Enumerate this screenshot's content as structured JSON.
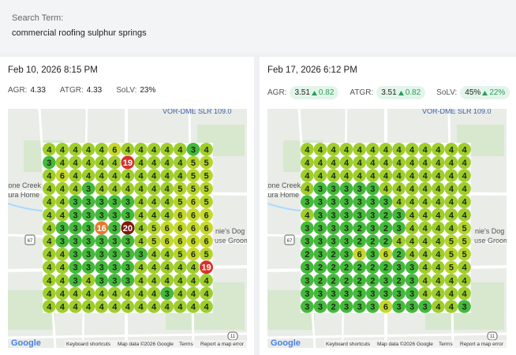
{
  "header": {
    "label": "Search Term:",
    "term": "commercial roofing sulphur springs"
  },
  "panels": [
    {
      "date": "Feb 10, 2026 8:15 PM",
      "metrics": [
        {
          "label": "AGR:",
          "value": "4.33"
        },
        {
          "label": "ATGR:",
          "value": "4.33"
        },
        {
          "label": "SoLV:",
          "value": "23%"
        }
      ],
      "grid": [
        [
          4,
          4,
          4,
          4,
          4,
          6,
          4,
          4,
          4,
          4,
          4,
          3,
          4
        ],
        [
          3,
          4,
          4,
          4,
          4,
          4,
          19,
          4,
          4,
          4,
          4,
          5,
          5
        ],
        [
          4,
          6,
          4,
          4,
          4,
          4,
          4,
          4,
          4,
          4,
          4,
          5,
          5
        ],
        [
          4,
          4,
          4,
          3,
          4,
          4,
          4,
          4,
          4,
          4,
          5,
          5,
          5
        ],
        [
          4,
          4,
          3,
          3,
          3,
          3,
          3,
          4,
          4,
          4,
          5,
          6,
          5
        ],
        [
          4,
          4,
          3,
          3,
          3,
          3,
          3,
          4,
          4,
          4,
          6,
          6,
          6
        ],
        [
          4,
          3,
          3,
          3,
          16,
          3,
          20,
          4,
          5,
          6,
          6,
          6,
          6
        ],
        [
          4,
          3,
          3,
          3,
          3,
          3,
          3,
          4,
          5,
          6,
          6,
          6,
          6
        ],
        [
          4,
          4,
          3,
          3,
          3,
          3,
          3,
          3,
          4,
          4,
          5,
          6,
          5
        ],
        [
          4,
          4,
          3,
          3,
          3,
          3,
          3,
          4,
          4,
          4,
          4,
          4,
          19
        ],
        [
          4,
          4,
          3,
          4,
          3,
          3,
          3,
          4,
          4,
          4,
          4,
          4,
          4
        ],
        [
          4,
          4,
          4,
          4,
          4,
          4,
          4,
          4,
          4,
          3,
          4,
          4,
          4
        ],
        [
          4,
          4,
          4,
          4,
          4,
          4,
          4,
          4,
          4,
          4,
          4,
          4,
          4
        ]
      ],
      "map": {
        "labels": [
          "VOR-DME SLR 109.0",
          "tone Creek",
          "tura Home",
          "nie's Dog",
          "use Groomi",
          "67",
          "11"
        ],
        "logo": "Google",
        "footer": [
          "Keyboard shortcuts",
          "Map data ©2026 Google",
          "Terms",
          "Report a map error"
        ]
      }
    },
    {
      "date": "Feb 17, 2026 6:12 PM",
      "metrics": [
        {
          "label": "AGR:",
          "value": "3.51",
          "change": "0.82"
        },
        {
          "label": "ATGR:",
          "value": "3.51",
          "change": "0.82"
        },
        {
          "label": "SoLV:",
          "value": "45%",
          "change": "22%"
        }
      ],
      "grid": [
        [
          4,
          4,
          4,
          4,
          4,
          4,
          4,
          4,
          4,
          4,
          4,
          4,
          4
        ],
        [
          4,
          4,
          4,
          4,
          4,
          4,
          4,
          4,
          4,
          4,
          4,
          4,
          4
        ],
        [
          4,
          4,
          4,
          4,
          4,
          4,
          4,
          4,
          4,
          4,
          4,
          4,
          4
        ],
        [
          4,
          3,
          3,
          3,
          3,
          3,
          4,
          4,
          4,
          4,
          4,
          4,
          4
        ],
        [
          3,
          3,
          3,
          3,
          3,
          3,
          3,
          4,
          4,
          4,
          4,
          4,
          4
        ],
        [
          4,
          3,
          3,
          3,
          3,
          3,
          2,
          3,
          4,
          4,
          4,
          4,
          4
        ],
        [
          3,
          3,
          3,
          3,
          2,
          3,
          2,
          3,
          4,
          4,
          4,
          4,
          5
        ],
        [
          3,
          3,
          3,
          3,
          2,
          2,
          2,
          4,
          4,
          4,
          4,
          5,
          5
        ],
        [
          2,
          3,
          2,
          3,
          6,
          3,
          6,
          2,
          4,
          4,
          4,
          5,
          5
        ],
        [
          3,
          2,
          2,
          2,
          2,
          2,
          2,
          3,
          3,
          4,
          4,
          5,
          4
        ],
        [
          3,
          2,
          2,
          2,
          2,
          2,
          3,
          2,
          3,
          4,
          4,
          4,
          4
        ],
        [
          3,
          3,
          3,
          3,
          3,
          3,
          3,
          3,
          3,
          4,
          4,
          4,
          4
        ],
        [
          3,
          3,
          2,
          3,
          3,
          3,
          6,
          3,
          3,
          3,
          4,
          4,
          3
        ]
      ],
      "map": {
        "labels": [
          "VOR-DME SLR 109.0",
          "tone Creek",
          "tura Home",
          "nie's Dog",
          "use Groomi",
          "67",
          "11"
        ],
        "logo": "Google",
        "footer": [
          "Keyboard shortcuts",
          "Map data ©2026 Google",
          "Terms",
          "Report a map error"
        ]
      }
    }
  ]
}
